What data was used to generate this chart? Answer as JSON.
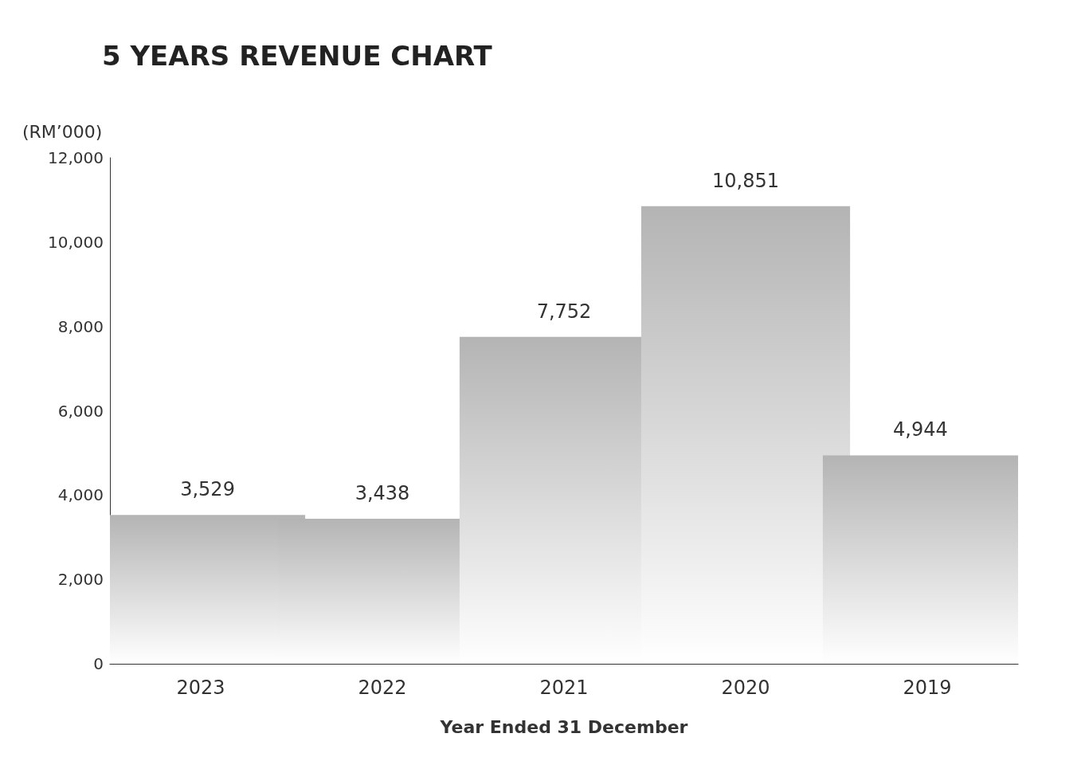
{
  "chart_data": {
    "type": "bar",
    "title": "5 YEARS REVENUE CHART",
    "ylabel": "(RM’000)",
    "xlabel": "Year Ended 31 December",
    "categories": [
      "2023",
      "2022",
      "2021",
      "2020",
      "2019"
    ],
    "values": [
      3529,
      3438,
      7752,
      10851,
      4944
    ],
    "value_labels": [
      "3,529",
      "3,438",
      "7,752",
      "10,851",
      "4,944"
    ],
    "color": "#b4b4b4",
    "ylim": [
      0,
      12000
    ],
    "yticks": [
      0,
      {
        "value": 2000,
        "label": "2,000"
      },
      {
        "value": 4000,
        "label": "4,000"
      },
      {
        "value": 6000,
        "label": "6,000"
      },
      {
        "value": 8000,
        "label": "8,000"
      },
      {
        "value": 10000,
        "label": "10,000"
      },
      {
        "value": 12000,
        "label": "12,000"
      }
    ],
    "grid": false
  }
}
